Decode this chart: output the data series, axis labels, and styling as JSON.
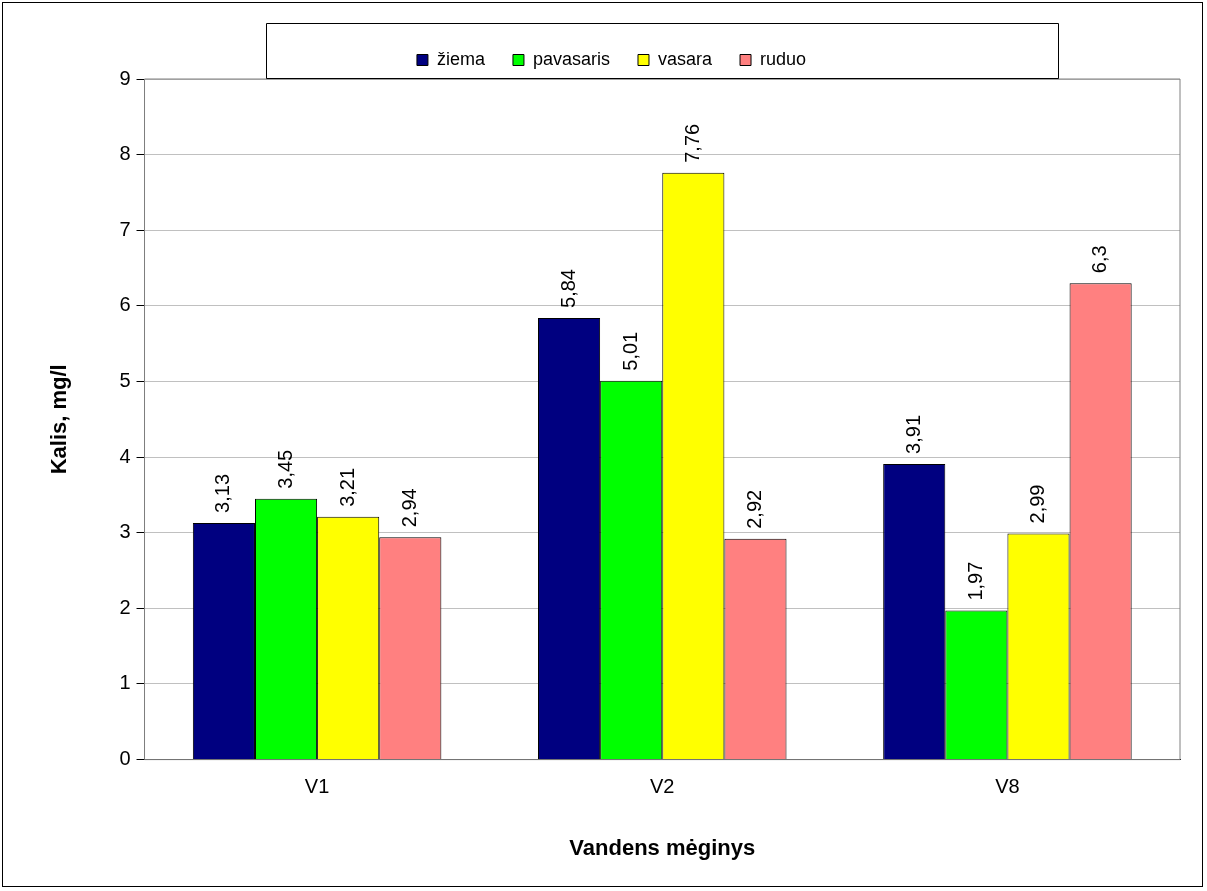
{
  "chart_data": {
    "type": "bar",
    "xlabel": "Vandens mėginys",
    "ylabel": "Kalis, mg/l",
    "categories": [
      "V1",
      "V2",
      "V8"
    ],
    "series": [
      {
        "name": "žiema",
        "color": "#000080",
        "values": [
          3.13,
          5.84,
          3.91
        ],
        "value_labels": [
          "3,13",
          "5,84",
          "3,91"
        ]
      },
      {
        "name": "pavasaris",
        "color": "#00ff00",
        "values": [
          3.45,
          5.01,
          1.97
        ],
        "value_labels": [
          "3,45",
          "5,01",
          "1,97"
        ]
      },
      {
        "name": "vasara",
        "color": "#ffff00",
        "values": [
          3.21,
          7.76,
          2.99
        ],
        "value_labels": [
          "3,21",
          "7,76",
          "2,99"
        ]
      },
      {
        "name": "ruduo",
        "color": "#ff8080",
        "values": [
          2.94,
          2.92,
          6.3
        ],
        "value_labels": [
          "2,94",
          "2,92",
          "6,3"
        ]
      }
    ],
    "ylim": [
      0,
      9
    ],
    "yticks": [
      0,
      1,
      2,
      3,
      4,
      5,
      6,
      7,
      8,
      9
    ],
    "grid": "y",
    "legend": "top"
  }
}
